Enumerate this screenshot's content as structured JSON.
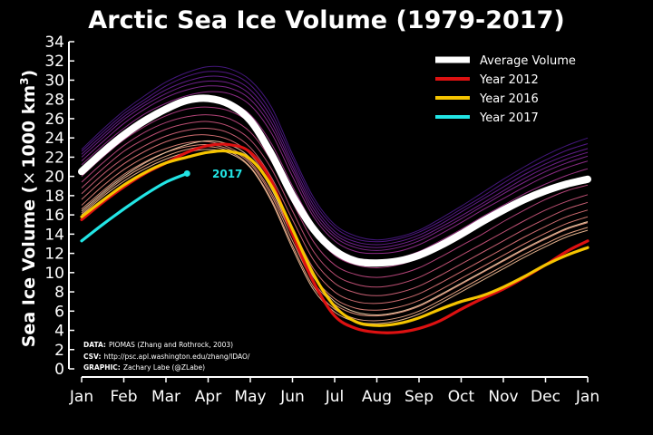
{
  "colors": {
    "background": "#000000",
    "average": "#ffffff",
    "year2012": "#dd1111",
    "year2016": "#f5c400",
    "year2017": "#22e5e5"
  },
  "credits": {
    "data_label": "DATA:",
    "data_text": "PIOMAS (Zhang and Rothrock, 2003)",
    "csv_label": "CSV:",
    "csv_text": "http://psc.apl.washington.edu/zhang/IDAO/",
    "graphic_label": "GRAPHIC:",
    "graphic_text": "Zachary Labe (@ZLabe)"
  },
  "chart_data": {
    "type": "line",
    "title": "Arctic Sea Ice Volume (1979-2017)",
    "ylabel_main": "Sea Ice Volume (",
    "ylabel_times": "×",
    "ylabel_unit": "1000 km",
    "ylabel_sup": "3",
    "ylabel_close": ")",
    "ylim": [
      0,
      34
    ],
    "yticks": [
      "0",
      "2",
      "4",
      "6",
      "8",
      "10",
      "12",
      "14",
      "16",
      "18",
      "20",
      "22",
      "24",
      "26",
      "28",
      "30",
      "32",
      "34"
    ],
    "xticks": [
      "Jan",
      "Feb",
      "Mar",
      "Apr",
      "May",
      "Jun",
      "Jul",
      "Aug",
      "Sep",
      "Oct",
      "Nov",
      "Dec",
      "Jan"
    ],
    "legend_position": "top-right",
    "legend": [
      {
        "label": "Average Volume",
        "color": "#ffffff"
      },
      {
        "label": "Year 2012",
        "color": "#dd1111"
      },
      {
        "label": "Year 2016",
        "color": "#f5c400"
      },
      {
        "label": "Year 2017",
        "color": "#22e5e5"
      }
    ],
    "annotation": "2017",
    "x": [
      0,
      0.5,
      1,
      1.5,
      2,
      2.5,
      3,
      3.5,
      4,
      4.5,
      5,
      5.5,
      6,
      6.5,
      7,
      7.5,
      8,
      8.5,
      9,
      9.5,
      10,
      10.5,
      11,
      11.5,
      12
    ],
    "highlight_series": [
      {
        "name": "Average Volume",
        "values": [
          20.5,
          22.5,
          24.3,
          25.8,
          27.0,
          27.9,
          28.1,
          27.5,
          25.8,
          22.3,
          18.0,
          14.5,
          12.3,
          11.2,
          11.0,
          11.2,
          11.8,
          12.8,
          14.0,
          15.3,
          16.5,
          17.6,
          18.5,
          19.2,
          19.7
        ]
      },
      {
        "name": "Year 2012",
        "values": [
          15.5,
          17.3,
          18.9,
          20.3,
          21.4,
          22.5,
          23.2,
          23.3,
          22.5,
          19.5,
          14.0,
          9.0,
          5.5,
          4.2,
          3.8,
          3.8,
          4.2,
          5.0,
          6.2,
          7.3,
          8.3,
          9.5,
          10.8,
          12.2,
          13.3
        ]
      },
      {
        "name": "Year 2016",
        "values": [
          15.8,
          17.5,
          19.1,
          20.4,
          21.4,
          22.0,
          22.5,
          22.6,
          21.8,
          19.0,
          14.5,
          9.8,
          6.5,
          4.9,
          4.5,
          4.7,
          5.3,
          6.2,
          7.0,
          7.6,
          8.5,
          9.6,
          10.8,
          11.8,
          12.6
        ]
      },
      {
        "name": "Year 2017",
        "values": [
          13.3,
          15.0,
          16.6,
          18.1,
          19.4,
          20.3
        ]
      }
    ],
    "background_series": [
      {
        "color": "#4a1a88",
        "values": [
          22.8,
          24.9,
          26.8,
          28.4,
          29.8,
          30.8,
          31.4,
          31.2,
          30.0,
          27.2,
          22.3,
          17.8,
          15.0,
          13.8,
          13.4,
          13.7,
          14.4,
          15.6,
          16.9,
          18.3,
          19.7,
          21.0,
          22.2,
          23.2,
          24.0
        ]
      },
      {
        "color": "#5a1a90",
        "values": [
          22.6,
          24.6,
          26.5,
          28.0,
          29.4,
          30.4,
          30.9,
          30.7,
          29.5,
          26.6,
          21.9,
          17.4,
          14.7,
          13.5,
          13.2,
          13.5,
          14.2,
          15.3,
          16.6,
          17.9,
          19.3,
          20.6,
          21.7,
          22.7,
          23.4
        ]
      },
      {
        "color": "#6a2098",
        "values": [
          22.3,
          24.3,
          26.2,
          27.7,
          29.0,
          29.9,
          30.4,
          30.2,
          29.0,
          26.1,
          21.4,
          17.0,
          14.3,
          13.2,
          12.9,
          13.2,
          13.9,
          15.0,
          16.3,
          17.6,
          18.9,
          20.2,
          21.3,
          22.2,
          22.9
        ]
      },
      {
        "color": "#7a2498",
        "values": [
          22.0,
          24.0,
          25.9,
          27.4,
          28.6,
          29.5,
          29.9,
          29.7,
          28.5,
          25.6,
          21.0,
          16.6,
          14.0,
          12.9,
          12.6,
          12.9,
          13.6,
          14.7,
          15.9,
          17.2,
          18.5,
          19.8,
          20.9,
          21.8,
          22.5
        ]
      },
      {
        "color": "#8a2a98",
        "values": [
          21.6,
          23.6,
          25.5,
          27.0,
          28.2,
          29.0,
          29.4,
          29.2,
          28.0,
          25.1,
          20.6,
          16.2,
          13.7,
          12.6,
          12.3,
          12.6,
          13.3,
          14.4,
          15.6,
          16.9,
          18.2,
          19.4,
          20.5,
          21.4,
          22.1
        ]
      },
      {
        "color": "#9a3094",
        "values": [
          21.2,
          23.2,
          25.0,
          26.5,
          27.6,
          28.4,
          28.8,
          28.6,
          27.4,
          24.5,
          20.0,
          15.8,
          13.3,
          12.2,
          12.0,
          12.2,
          12.9,
          14.0,
          15.2,
          16.5,
          17.7,
          18.9,
          20.0,
          20.9,
          21.6
        ]
      },
      {
        "color": "#aa3890",
        "values": [
          20.6,
          22.6,
          24.4,
          25.8,
          26.9,
          27.7,
          28.0,
          27.7,
          26.4,
          23.4,
          19.0,
          15.0,
          12.6,
          11.5,
          11.2,
          11.5,
          12.2,
          13.3,
          14.5,
          15.8,
          17.0,
          18.2,
          19.2,
          20.1,
          20.8
        ]
      },
      {
        "color": "#b8408a",
        "values": [
          20.0,
          22.0,
          23.8,
          25.2,
          26.3,
          27.0,
          27.2,
          26.8,
          25.5,
          22.6,
          18.3,
          14.2,
          11.8,
          10.8,
          10.5,
          10.8,
          11.5,
          12.6,
          13.8,
          15.0,
          16.2,
          17.4,
          18.4,
          19.3,
          19.9
        ]
      },
      {
        "color": "#c44a84",
        "values": [
          19.4,
          21.4,
          23.2,
          24.6,
          25.6,
          26.2,
          26.4,
          26.0,
          24.6,
          21.6,
          17.3,
          13.2,
          10.8,
          9.8,
          9.5,
          9.8,
          10.5,
          11.6,
          12.8,
          14.0,
          15.3,
          16.5,
          17.6,
          18.5,
          19.1
        ]
      },
      {
        "color": "#d05880",
        "values": [
          18.8,
          20.8,
          22.6,
          23.9,
          24.9,
          25.5,
          25.7,
          25.2,
          23.8,
          20.8,
          16.4,
          12.2,
          9.8,
          8.8,
          8.5,
          8.8,
          9.5,
          10.6,
          11.8,
          13.0,
          14.2,
          15.4,
          16.5,
          17.4,
          18.1
        ]
      },
      {
        "color": "#da687e",
        "values": [
          18.2,
          20.2,
          21.9,
          23.2,
          24.2,
          24.8,
          25.0,
          24.5,
          23.0,
          19.9,
          15.5,
          11.3,
          8.9,
          7.9,
          7.6,
          7.9,
          8.6,
          9.7,
          10.9,
          12.1,
          13.3,
          14.5,
          15.6,
          16.6,
          17.3
        ]
      },
      {
        "color": "#e4787c",
        "values": [
          17.6,
          19.6,
          21.3,
          22.6,
          23.6,
          24.2,
          24.3,
          23.8,
          22.3,
          19.1,
          14.6,
          10.4,
          8.0,
          7.0,
          6.8,
          7.1,
          7.8,
          8.9,
          10.1,
          11.3,
          12.5,
          13.7,
          14.8,
          15.8,
          16.5
        ]
      },
      {
        "color": "#ec8a7e",
        "values": [
          17.0,
          19.0,
          20.7,
          22.0,
          22.9,
          23.5,
          23.6,
          23.0,
          21.5,
          18.3,
          13.8,
          9.6,
          7.3,
          6.3,
          6.1,
          6.4,
          7.1,
          8.2,
          9.4,
          10.6,
          11.8,
          13.0,
          14.1,
          15.1,
          15.8
        ]
      },
      {
        "color": "#f29c84",
        "values": [
          16.6,
          18.5,
          20.2,
          21.5,
          22.5,
          23.1,
          23.3,
          22.8,
          21.3,
          18.0,
          13.3,
          9.0,
          6.7,
          5.7,
          5.5,
          5.8,
          6.5,
          7.6,
          8.8,
          10.0,
          11.2,
          12.4,
          13.5,
          14.5,
          15.2
        ]
      },
      {
        "color": "#f6ae8c",
        "values": [
          16.2,
          18.1,
          19.8,
          21.1,
          22.1,
          22.8,
          23.1,
          22.6,
          21.0,
          17.6,
          12.8,
          8.5,
          6.2,
          5.2,
          5.0,
          5.3,
          6.0,
          7.1,
          8.3,
          9.5,
          10.7,
          11.9,
          13.0,
          14.0,
          14.7
        ]
      },
      {
        "color": "#f8c29a",
        "values": [
          16.0,
          17.9,
          19.5,
          20.8,
          21.8,
          22.5,
          22.8,
          22.4,
          20.9,
          17.4,
          12.5,
          8.2,
          5.9,
          4.9,
          4.7,
          5.0,
          5.7,
          6.8,
          8.0,
          9.2,
          10.4,
          11.6,
          12.7,
          13.7,
          14.4
        ]
      },
      {
        "color": "#fad4ae",
        "values": [
          16.4,
          18.3,
          20.0,
          21.4,
          22.5,
          23.3,
          23.7,
          23.3,
          21.9,
          18.7,
          13.9,
          9.5,
          7.0,
          5.9,
          5.6,
          5.9,
          6.6,
          7.7,
          8.9,
          10.1,
          11.3,
          12.5,
          13.6,
          14.6,
          15.3
        ]
      }
    ]
  }
}
